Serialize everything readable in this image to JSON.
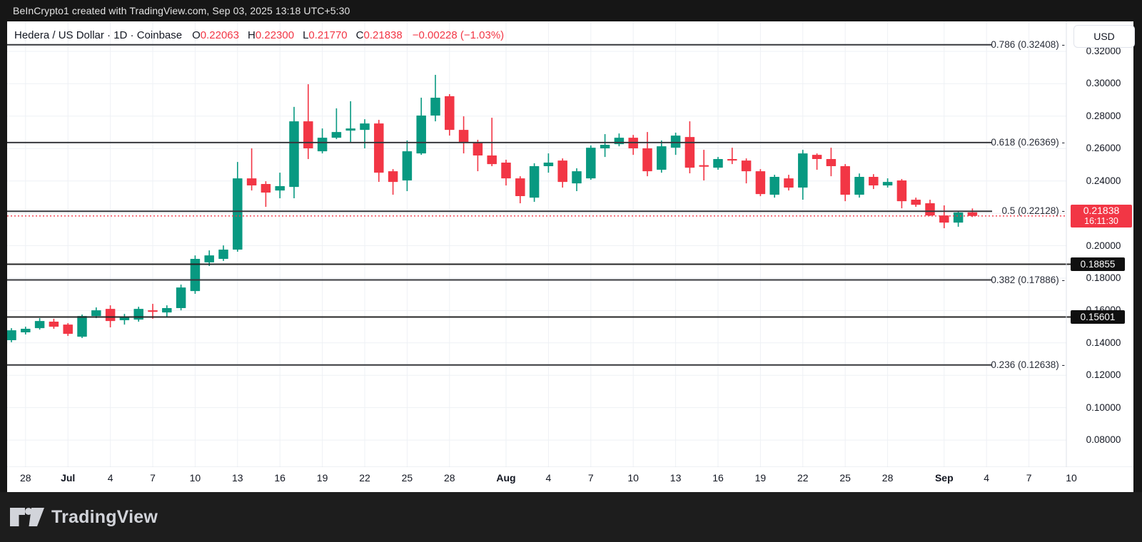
{
  "watermark_bar": {
    "text": "BeInCrypto1 created with TradingView.com, Sep 03, 2025 13:18 UTC+5:30"
  },
  "legend": {
    "title": "Hedera / US Dollar · 1D · Coinbase",
    "ohlc": [
      {
        "k": "O",
        "v": "0.22063"
      },
      {
        "k": "H",
        "v": "0.22300"
      },
      {
        "k": "L",
        "v": "0.21770"
      },
      {
        "k": "C",
        "v": "0.21838"
      }
    ],
    "change": "−0.00228 (−1.03%)"
  },
  "price_axis": {
    "currency_button": "USD",
    "ticks": [
      {
        "label": "0.32000",
        "value": 0.32
      },
      {
        "label": "0.30000",
        "value": 0.3
      },
      {
        "label": "0.28000",
        "value": 0.28
      },
      {
        "label": "0.26000",
        "value": 0.26
      },
      {
        "label": "0.24000",
        "value": 0.24
      },
      {
        "label": "0.20000",
        "value": 0.2
      },
      {
        "label": "0.18000",
        "value": 0.18
      },
      {
        "label": "0.16000",
        "value": 0.16
      },
      {
        "label": "0.14000",
        "value": 0.14
      },
      {
        "label": "0.12000",
        "value": 0.12
      },
      {
        "label": "0.10000",
        "value": 0.1
      },
      {
        "label": "0.08000",
        "value": 0.08
      }
    ]
  },
  "time_axis": {
    "ticks": [
      {
        "label": "28",
        "i": 1
      },
      {
        "label": "Jul",
        "i": 4,
        "bold": true
      },
      {
        "label": "4",
        "i": 7
      },
      {
        "label": "7",
        "i": 10
      },
      {
        "label": "10",
        "i": 13
      },
      {
        "label": "13",
        "i": 16
      },
      {
        "label": "16",
        "i": 19
      },
      {
        "label": "19",
        "i": 22
      },
      {
        "label": "22",
        "i": 25
      },
      {
        "label": "25",
        "i": 28
      },
      {
        "label": "28",
        "i": 31
      },
      {
        "label": "Aug",
        "i": 35,
        "bold": true
      },
      {
        "label": "4",
        "i": 38
      },
      {
        "label": "7",
        "i": 41
      },
      {
        "label": "10",
        "i": 44
      },
      {
        "label": "13",
        "i": 47
      },
      {
        "label": "16",
        "i": 50
      },
      {
        "label": "19",
        "i": 53
      },
      {
        "label": "22",
        "i": 56
      },
      {
        "label": "25",
        "i": 59
      },
      {
        "label": "28",
        "i": 62
      },
      {
        "label": "Sep",
        "i": 66,
        "bold": true
      },
      {
        "label": "4",
        "i": 69
      },
      {
        "label": "7",
        "i": 72
      },
      {
        "label": "10",
        "i": 75
      }
    ]
  },
  "last_price": {
    "value": 0.21838,
    "label": "0.21838",
    "time": "16:11:30"
  },
  "alert_lines": [
    {
      "price": 0.18855,
      "label": "0.18855"
    },
    {
      "price": 0.15601,
      "label": "0.15601"
    }
  ],
  "fib_levels": [
    {
      "ratio": "0.786",
      "price": 0.32408,
      "label": "0.786 (0.32408) -"
    },
    {
      "ratio": "0.618",
      "price": 0.26369,
      "label": "0.618 (0.26369) -"
    },
    {
      "ratio": "0.5",
      "price": 0.22128,
      "label": "0.5 (0.22128) -"
    },
    {
      "ratio": "0.382",
      "price": 0.17886,
      "label": "0.382 (0.17886) -"
    },
    {
      "ratio": "0.236",
      "price": 0.12638,
      "label": "0.236 (0.12638) -"
    }
  ],
  "colors": {
    "up": "#089981",
    "down": "#F23645",
    "grid": "#eef1f5",
    "fib_line": "#37383d",
    "alert_line": "#242424",
    "price_line": "#F23645",
    "axis_border": "#dde1e8"
  },
  "footer": {
    "brand": "TradingView"
  },
  "chart_data": {
    "type": "candlestick",
    "symbol": "Hedera / US Dollar",
    "interval": "1D",
    "exchange": "Coinbase",
    "ylabel": "USD",
    "ylim": [
      0.0633,
      0.3385
    ],
    "grid": true,
    "candles_format": [
      "date",
      "open",
      "high",
      "low",
      "close"
    ],
    "candles": [
      [
        "Jun 27",
        0.1417,
        0.1491,
        0.1404,
        0.1478
      ],
      [
        "Jun 28",
        0.1465,
        0.15,
        0.1452,
        0.1487
      ],
      [
        "Jun 29",
        0.1491,
        0.1553,
        0.1482,
        0.1535
      ],
      [
        "Jun 30",
        0.1531,
        0.1549,
        0.1487,
        0.15
      ],
      [
        "Jul 1",
        0.1513,
        0.1522,
        0.1443,
        0.1456
      ],
      [
        "Jul 2",
        0.1438,
        0.1575,
        0.143,
        0.1566
      ],
      [
        "Jul 3",
        0.1566,
        0.1619,
        0.1553,
        0.1601
      ],
      [
        "Jul 4",
        0.161,
        0.1632,
        0.1496,
        0.1535
      ],
      [
        "Jul 5",
        0.154,
        0.1579,
        0.1513,
        0.1557
      ],
      [
        "Jul 6",
        0.1544,
        0.1623,
        0.1531,
        0.161
      ],
      [
        "Jul 7",
        0.1601,
        0.1641,
        0.1549,
        0.1592
      ],
      [
        "Jul 8",
        0.1588,
        0.1632,
        0.1562,
        0.1615
      ],
      [
        "Jul 9",
        0.1615,
        0.176,
        0.1601,
        0.1742
      ],
      [
        "Jul 10",
        0.172,
        0.194,
        0.1703,
        0.1919
      ],
      [
        "Jul 11",
        0.1897,
        0.1971,
        0.1875,
        0.194
      ],
      [
        "Jul 12",
        0.1919,
        0.2002,
        0.1906,
        0.1976
      ],
      [
        "Jul 13",
        0.1976,
        0.2517,
        0.1963,
        0.2416
      ],
      [
        "Jul 14",
        0.2416,
        0.2601,
        0.2341,
        0.2372
      ],
      [
        "Jul 15",
        0.2381,
        0.2398,
        0.224,
        0.2328
      ],
      [
        "Jul 16",
        0.2341,
        0.2451,
        0.2293,
        0.2368
      ],
      [
        "Jul 17",
        0.2363,
        0.2857,
        0.2293,
        0.2768
      ],
      [
        "Jul 18",
        0.2768,
        0.2997,
        0.2535,
        0.2601
      ],
      [
        "Jul 19",
        0.2583,
        0.2724,
        0.257,
        0.2667
      ],
      [
        "Jul 20",
        0.2667,
        0.2848,
        0.2658,
        0.2702
      ],
      [
        "Jul 21",
        0.2711,
        0.2892,
        0.2636,
        0.2724
      ],
      [
        "Jul 22",
        0.2715,
        0.2781,
        0.2601,
        0.2755
      ],
      [
        "Jul 23",
        0.2755,
        0.2777,
        0.2394,
        0.2451
      ],
      [
        "Jul 24",
        0.246,
        0.2473,
        0.2315,
        0.2394
      ],
      [
        "Jul 25",
        0.2403,
        0.265,
        0.2337,
        0.2583
      ],
      [
        "Jul 26",
        0.257,
        0.2914,
        0.2561,
        0.2804
      ],
      [
        "Jul 27",
        0.2804,
        0.3055,
        0.2768,
        0.2914
      ],
      [
        "Jul 28",
        0.2923,
        0.2936,
        0.268,
        0.2715
      ],
      [
        "Jul 29",
        0.2715,
        0.2799,
        0.257,
        0.2636
      ],
      [
        "Jul 30",
        0.2636,
        0.2654,
        0.246,
        0.2557
      ],
      [
        "Jul 31",
        0.2557,
        0.279,
        0.2491,
        0.2504
      ],
      [
        "Aug 1",
        0.2513,
        0.2531,
        0.2372,
        0.2416
      ],
      [
        "Aug 2",
        0.2416,
        0.2429,
        0.2262,
        0.2306
      ],
      [
        "Aug 3",
        0.2297,
        0.2509,
        0.2271,
        0.2491
      ],
      [
        "Aug 4",
        0.2491,
        0.257,
        0.2451,
        0.2513
      ],
      [
        "Aug 5",
        0.2526,
        0.2539,
        0.2359,
        0.2394
      ],
      [
        "Aug 6",
        0.2385,
        0.2478,
        0.2337,
        0.246
      ],
      [
        "Aug 7",
        0.2416,
        0.2619,
        0.2407,
        0.2605
      ],
      [
        "Aug 8",
        0.2601,
        0.2689,
        0.2548,
        0.2623
      ],
      [
        "Aug 9",
        0.2627,
        0.2693,
        0.2614,
        0.2667
      ],
      [
        "Aug 10",
        0.2667,
        0.2684,
        0.2561,
        0.2601
      ],
      [
        "Aug 11",
        0.2601,
        0.2702,
        0.2429,
        0.246
      ],
      [
        "Aug 12",
        0.2469,
        0.265,
        0.2451,
        0.2614
      ],
      [
        "Aug 13",
        0.2605,
        0.2698,
        0.2561,
        0.268
      ],
      [
        "Aug 14",
        0.2671,
        0.2768,
        0.2447,
        0.2482
      ],
      [
        "Aug 15",
        0.2497,
        0.2592,
        0.2403,
        0.2488
      ],
      [
        "Aug 16",
        0.2482,
        0.2548,
        0.2469,
        0.2535
      ],
      [
        "Aug 17",
        0.2535,
        0.2605,
        0.2504,
        0.2526
      ],
      [
        "Aug 18",
        0.2526,
        0.2539,
        0.2385,
        0.246
      ],
      [
        "Aug 19",
        0.246,
        0.2473,
        0.2306,
        0.2319
      ],
      [
        "Aug 20",
        0.2315,
        0.2438,
        0.2297,
        0.2425
      ],
      [
        "Aug 21",
        0.2416,
        0.2438,
        0.2341,
        0.2359
      ],
      [
        "Aug 22",
        0.2359,
        0.2592,
        0.2284,
        0.257
      ],
      [
        "Aug 23",
        0.2561,
        0.257,
        0.2469,
        0.2535
      ],
      [
        "Aug 24",
        0.2535,
        0.2605,
        0.2429,
        0.2491
      ],
      [
        "Aug 25",
        0.2491,
        0.2504,
        0.2275,
        0.2315
      ],
      [
        "Aug 26",
        0.2315,
        0.2446,
        0.2297,
        0.2425
      ],
      [
        "Aug 27",
        0.2425,
        0.2442,
        0.235,
        0.2372
      ],
      [
        "Aug 28",
        0.2372,
        0.2416,
        0.2359,
        0.2394
      ],
      [
        "Aug 29",
        0.2403,
        0.2412,
        0.2231,
        0.2275
      ],
      [
        "Aug 30",
        0.2284,
        0.2297,
        0.224,
        0.2253
      ],
      [
        "Aug 31",
        0.2262,
        0.2284,
        0.2183,
        0.2187
      ],
      [
        "Sep 1",
        0.2187,
        0.2249,
        0.2108,
        0.2143
      ],
      [
        "Sep 2",
        0.2143,
        0.221,
        0.2117,
        0.2205
      ],
      [
        "Sep 3",
        0.22063,
        0.223,
        0.2177,
        0.21838
      ]
    ]
  }
}
